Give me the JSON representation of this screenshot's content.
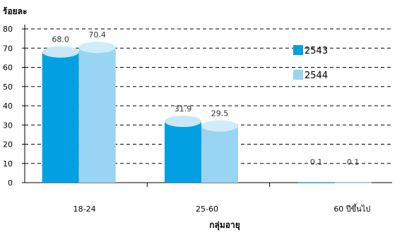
{
  "chart_data": {
    "type": "bar",
    "title": "",
    "ylabel": "ร้อยละ",
    "xlabel": "กลุ่มอายุ",
    "ylim": [
      0,
      80
    ],
    "yticks": [
      "0",
      "10",
      "20",
      "30",
      "40",
      "50",
      "60",
      "70",
      "80"
    ],
    "categories": [
      "18-24",
      "25-60",
      "60 ปีขึ้นไป"
    ],
    "series": [
      {
        "name": "2543",
        "values": [
          68.0,
          31.9,
          0.1
        ],
        "labels": [
          "68.0",
          "31.9",
          "0.1"
        ],
        "color": "#00a0e3",
        "cap_color": "#c8e8f8"
      },
      {
        "name": "2544",
        "values": [
          70.4,
          29.5,
          0.1
        ],
        "labels": [
          "70.4",
          "29.5",
          "0.1"
        ],
        "color": "#99d4f2",
        "cap_color": "#d0ecfa"
      }
    ],
    "grid": true,
    "grid_style": "dashed",
    "legend_position": "right"
  }
}
